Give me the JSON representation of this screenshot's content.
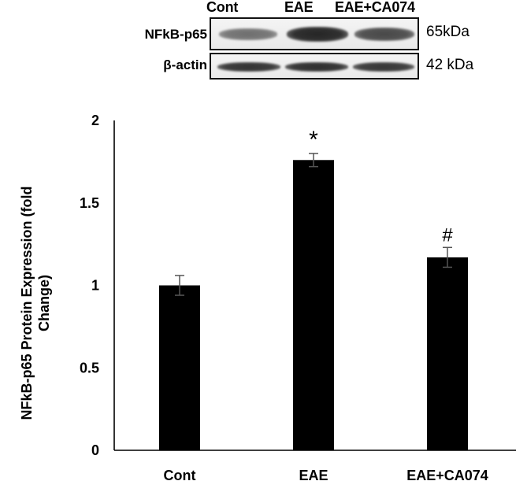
{
  "blot": {
    "lanes": [
      "Cont",
      "EAE",
      "EAE+CA074"
    ],
    "rows": [
      {
        "label": "NFkB-p65",
        "kda": "65kDa"
      },
      {
        "label": "β-actin",
        "kda": "42 kDa"
      }
    ],
    "band_intensity": [
      [
        0.58,
        0.92,
        0.76
      ],
      [
        0.86,
        0.88,
        0.84
      ]
    ]
  },
  "chart_data": {
    "type": "bar",
    "categories": [
      "Cont",
      "EAE",
      "EAE+CA074"
    ],
    "values": [
      1.0,
      1.76,
      1.17
    ],
    "errors": [
      0.06,
      0.04,
      0.06
    ],
    "significance": [
      "",
      "*",
      "#"
    ],
    "ylabel": "NFkB-p65 Protein Expression (fold Change)",
    "ylabel_lines": [
      "NFkB-p65 Protein Expression (fold",
      "Change)"
    ],
    "xlabel": "",
    "ylim": [
      0,
      2
    ],
    "yticks": [
      0,
      0.5,
      1,
      1.5,
      2
    ],
    "ytick_labels": [
      "0",
      "0.5",
      "1",
      "1.5",
      "2"
    ],
    "grid": false,
    "bar_color": "#000000"
  }
}
